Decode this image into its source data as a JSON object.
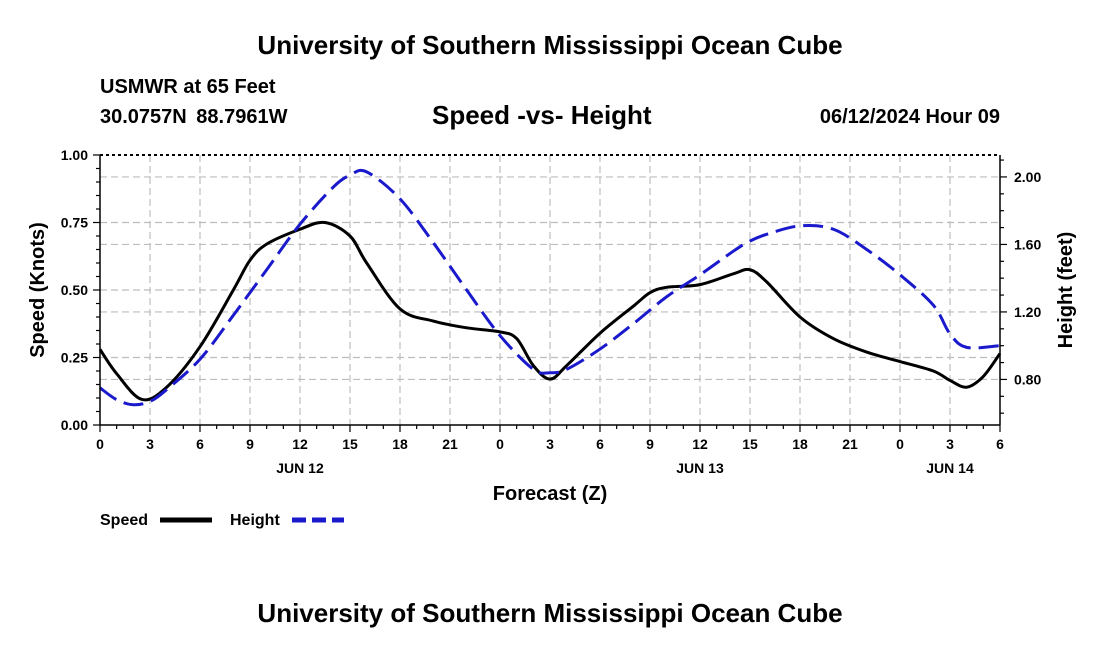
{
  "header": {
    "title": "University of Southern Mississippi Ocean Cube",
    "station": "USMWR at 65 Feet",
    "coords": "30.0757N  88.7961W",
    "subtitle": "Speed -vs- Height",
    "datetime": "06/12/2024 Hour 09"
  },
  "footer": {
    "title": "University of Southern Mississippi Ocean Cube"
  },
  "colors": {
    "speed": "#000000",
    "height": "#1a1acc",
    "grid": "#bdbdbd"
  },
  "chart_data": {
    "type": "line",
    "xlabel": "Forecast (Z)",
    "xlim": [
      0,
      54
    ],
    "x_ticks": [
      0,
      3,
      6,
      9,
      12,
      15,
      18,
      21,
      24,
      27,
      30,
      33,
      36,
      39,
      42,
      45,
      48,
      51,
      54
    ],
    "x_tick_labels": [
      "0",
      "3",
      "6",
      "9",
      "12",
      "15",
      "18",
      "21",
      "0",
      "3",
      "6",
      "9",
      "12",
      "15",
      "18",
      "21",
      "0",
      "3",
      "6"
    ],
    "date_labels": [
      {
        "x": 12,
        "label": "JUN 12"
      },
      {
        "x": 36,
        "label": "JUN 13"
      },
      {
        "x": 51,
        "label": "JUN 14"
      }
    ],
    "ylabel_left": "Speed (Knots)",
    "ylim_left": [
      0,
      1
    ],
    "y_ticks_left": [
      0,
      0.25,
      0.5,
      0.75,
      1.0
    ],
    "y_tick_labels_left": [
      "0.00",
      "0.25",
      "0.50",
      "0.75",
      "1.00"
    ],
    "ylabel_right": "Height (feet)",
    "ylim_right": [
      0.53,
      2.13
    ],
    "y_ticks_right": [
      0.8,
      1.2,
      1.6,
      2.0
    ],
    "y_tick_labels_right": [
      "0.80",
      "1.20",
      "1.60",
      "2.00"
    ],
    "grid": true,
    "series": [
      {
        "name": "Speed",
        "axis": "left",
        "style": "solid",
        "x": [
          0,
          1,
          2.5,
          4,
          6,
          8,
          9,
          10,
          12,
          13.5,
          15,
          16,
          18,
          20,
          22,
          24,
          25,
          26,
          27,
          28,
          30,
          32,
          33,
          34,
          36,
          38,
          39,
          40,
          42,
          44,
          46,
          48,
          50,
          51,
          52,
          53,
          54
        ],
        "y": [
          0.28,
          0.19,
          0.095,
          0.14,
          0.29,
          0.5,
          0.61,
          0.67,
          0.725,
          0.75,
          0.7,
          0.6,
          0.43,
          0.385,
          0.36,
          0.345,
          0.32,
          0.22,
          0.17,
          0.22,
          0.34,
          0.44,
          0.49,
          0.51,
          0.52,
          0.56,
          0.575,
          0.53,
          0.4,
          0.32,
          0.27,
          0.235,
          0.2,
          0.165,
          0.14,
          0.18,
          0.265
        ]
      },
      {
        "name": "Height",
        "axis": "right",
        "style": "dashed",
        "x": [
          0,
          1,
          2,
          3,
          4,
          6,
          8,
          10,
          12,
          14,
          15,
          16,
          18,
          20,
          22,
          24,
          26,
          27,
          28,
          30,
          32,
          34,
          36,
          38,
          39,
          40,
          42,
          44,
          46,
          48,
          50,
          51,
          52,
          54
        ],
        "y": [
          0.75,
          0.68,
          0.65,
          0.67,
          0.74,
          0.92,
          1.18,
          1.45,
          1.72,
          1.94,
          2.01,
          2.03,
          1.87,
          1.61,
          1.33,
          1.06,
          0.86,
          0.84,
          0.86,
          0.98,
          1.13,
          1.29,
          1.42,
          1.56,
          1.62,
          1.66,
          1.71,
          1.69,
          1.57,
          1.42,
          1.24,
          1.07,
          0.99,
          1.0
        ]
      }
    ],
    "legend": [
      {
        "label": "Speed",
        "style": "solid"
      },
      {
        "label": "Height",
        "style": "dashed"
      }
    ]
  }
}
